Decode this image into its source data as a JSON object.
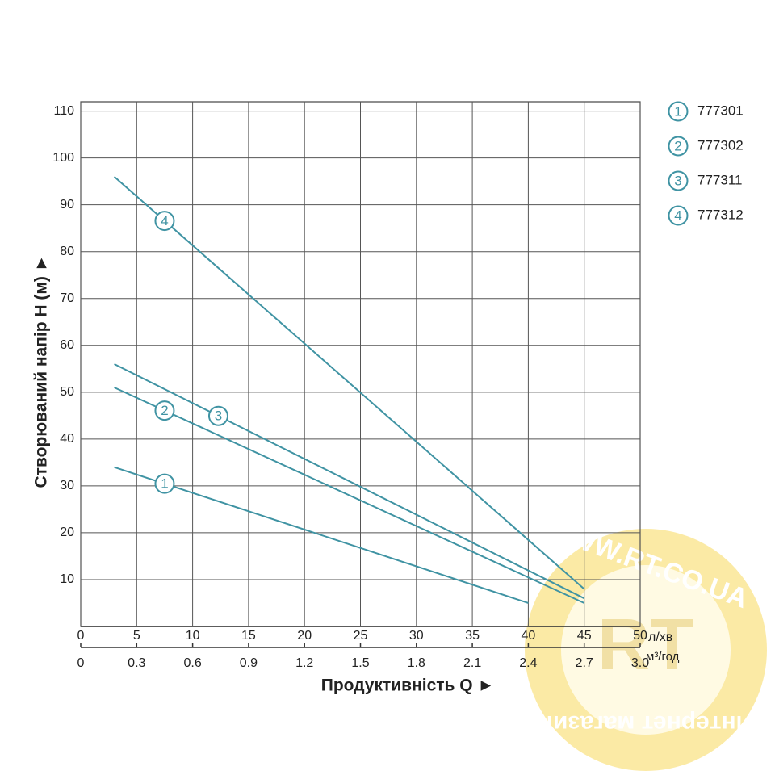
{
  "chart_data": {
    "type": "line",
    "y_label": "Створюваний напір H (м) ►",
    "x_label": "Продуктивність  Q ►",
    "x_unit": "л/хв",
    "x2_unit": "м³/год",
    "xlim": [
      0,
      50
    ],
    "xticks": [
      0,
      5,
      10,
      15,
      20,
      25,
      30,
      35,
      40,
      45,
      50
    ],
    "x2lim": [
      0,
      3
    ],
    "x2ticks": [
      0,
      0.3,
      0.6,
      0.9,
      1.2,
      1.5,
      1.8,
      2.1,
      2.4,
      2.7,
      {
        "value": 3,
        "label": "3.0"
      }
    ],
    "ylim": [
      0,
      112
    ],
    "yticks": [
      10,
      20,
      30,
      40,
      50,
      60,
      70,
      80,
      90,
      100,
      110
    ],
    "grid": true,
    "series": [
      {
        "name": "777301",
        "label": "1",
        "color": "#3f93a3",
        "x": [
          3,
          40
        ],
        "values": [
          34,
          5
        ]
      },
      {
        "name": "777302",
        "label": "2",
        "color": "#3f93a3",
        "x": [
          3,
          45
        ],
        "values": [
          51,
          5
        ]
      },
      {
        "name": "777311",
        "label": "3",
        "color": "#3f93a3",
        "x": [
          3,
          45
        ],
        "values": [
          56,
          6
        ]
      },
      {
        "name": "777312",
        "label": "4",
        "color": "#3f93a3",
        "x": [
          3,
          45
        ],
        "values": [
          96,
          8
        ]
      }
    ],
    "watermark": {
      "url": "WWW.RT.CO.UA",
      "logo": "RT",
      "caption": "Интернет магазин"
    }
  }
}
